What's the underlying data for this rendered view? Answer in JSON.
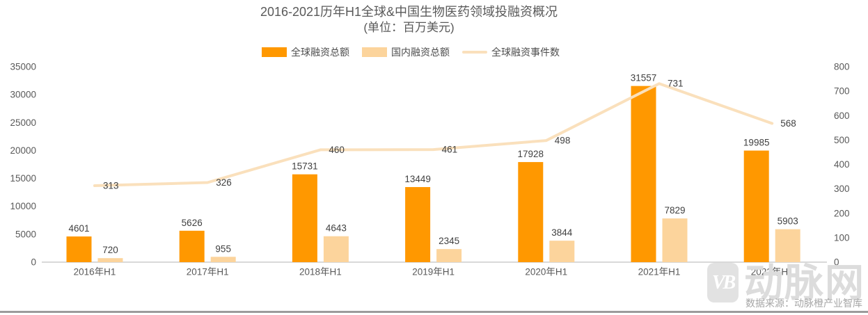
{
  "title": "2016-2021历年H1全球&中国生物医药领域投融资概况",
  "subtitle": "(单位：百万美元)",
  "legend": [
    {
      "label": "全球融资总额",
      "type": "bar",
      "color": "#FF9800"
    },
    {
      "label": "国内融资总额",
      "type": "bar",
      "color": "#FCD49C"
    },
    {
      "label": "全球融资事件数",
      "type": "line",
      "color": "#FAE0BC"
    }
  ],
  "source_note": "数据来源：动脉橙产业智库",
  "watermark": {
    "logo_text": "VB",
    "brand_text": "动脉网"
  },
  "colors": {
    "global_bar": "#FF9800",
    "domestic_bar": "#FCD49C",
    "events_line": "#FAE0BC",
    "title_text": "#595959",
    "axis_text": "#595959",
    "data_label_text": "#404040",
    "baseline": "#d9d9d9",
    "bottom_rule": "#9b9b9b",
    "watermark_gray": "#dcdcdc",
    "source_text": "#a6a6a6"
  },
  "chart_data": {
    "type": "bar",
    "subtype": "grouped-bars-with-line",
    "title": "2016-2021历年H1全球&中国生物医药领域投融资概况",
    "subtitle": "(单位：百万美元)",
    "categories": [
      "2016年H1",
      "2017年H1",
      "2018年H1",
      "2019年H1",
      "2020年H1",
      "2021年H1",
      "2022年H1"
    ],
    "series": [
      {
        "name": "全球融资总额",
        "type": "bar",
        "axis": "left",
        "color": "#FF9800",
        "values": [
          4601,
          5626,
          15731,
          13449,
          17928,
          31557,
          19985
        ]
      },
      {
        "name": "国内融资总额",
        "type": "bar",
        "axis": "left",
        "color": "#FCD49C",
        "values": [
          720,
          955,
          4643,
          2345,
          3844,
          7829,
          5903
        ]
      },
      {
        "name": "全球融资事件数",
        "type": "line",
        "axis": "right",
        "color": "#FAE0BC",
        "values": [
          313,
          326,
          460,
          461,
          498,
          731,
          568
        ]
      }
    ],
    "left_axis": {
      "min": 0,
      "max": 35000,
      "step": 5000
    },
    "right_axis": {
      "min": 0,
      "max": 800,
      "step": 100
    },
    "grid": false,
    "legend_position": "top",
    "data_labels": true
  }
}
